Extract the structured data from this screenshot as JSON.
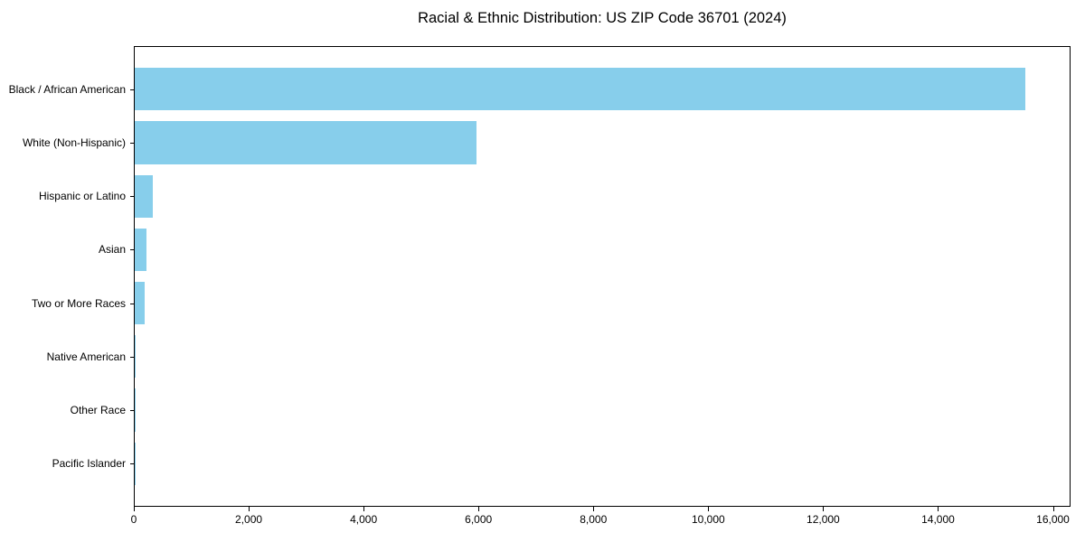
{
  "title": "Racial & Ethnic Distribution: US ZIP Code 36701 (2024)",
  "colors": {
    "bar": "#87CEEB",
    "axis": "#000000",
    "text": "#000000",
    "background": "#ffffff"
  },
  "chart_data": {
    "type": "bar",
    "orientation": "horizontal",
    "title": "Racial & Ethnic Distribution: US ZIP Code 36701 (2024)",
    "xlabel": "",
    "ylabel": "",
    "categories": [
      "Black / African American",
      "White (Non-Hispanic)",
      "Hispanic or Latino",
      "Asian",
      "Two or More Races",
      "Native American",
      "Other Race",
      "Pacific Islander"
    ],
    "values": [
      15500,
      5950,
      310,
      200,
      170,
      20,
      15,
      5
    ],
    "xlim": [
      0,
      16275
    ],
    "x_ticks": [
      0,
      2000,
      4000,
      6000,
      8000,
      10000,
      12000,
      14000,
      16000
    ],
    "x_tick_labels": [
      "0",
      "2,000",
      "4,000",
      "6,000",
      "8,000",
      "10,000",
      "12,000",
      "14,000",
      "16,000"
    ],
    "bar_color": "#87CEEB",
    "bar_height_fraction": 0.8,
    "grid": false,
    "legend": null
  }
}
